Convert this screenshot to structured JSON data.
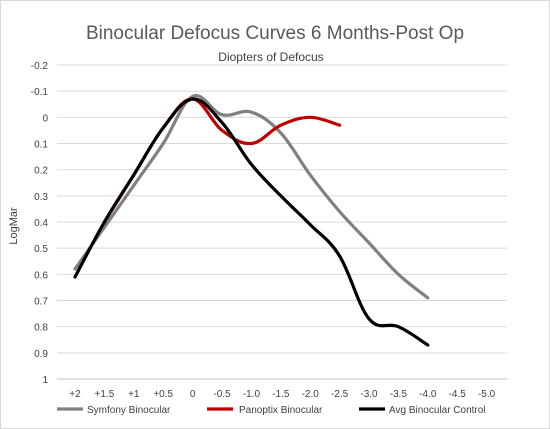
{
  "chart_data": {
    "type": "line",
    "title": "Binocular Defocus Curves 6 Months-Post Op",
    "subtitle": "Diopters of Defocus",
    "ylabel": "LogMar",
    "ylim": [
      -0.2,
      1.0
    ],
    "y_reversed": true,
    "yticks": [
      -0.2,
      -0.1,
      0,
      0.1,
      0.2,
      0.3,
      0.4,
      0.5,
      0.6,
      0.7,
      0.8,
      0.9,
      1
    ],
    "ytick_labels": [
      "-0.2",
      "-0.1",
      "0",
      "0.1",
      "0.2",
      "0.3",
      "0.4",
      "0.5",
      "0.6",
      "0.7",
      "0.8",
      "0.9",
      "1"
    ],
    "xticks": [
      2,
      1.5,
      1,
      0.5,
      0,
      -0.5,
      -1,
      -1.5,
      -2,
      -2.5,
      -3,
      -3.5,
      -4,
      -4.5,
      -5
    ],
    "xtick_labels": [
      "+2",
      "+1.5",
      "+1",
      "+0.5",
      "0",
      "-0.5",
      "-1.0",
      "-1.5",
      "-2.0",
      "-2.5",
      "-3.0",
      "-3.5",
      "-4.0",
      "-4.5",
      "-5.0"
    ],
    "grid": "horizontal",
    "legend_position": "bottom",
    "series": [
      {
        "name": "Symfony Binocular",
        "color": "#808080",
        "x": [
          2,
          1.5,
          1,
          0.5,
          0,
          -0.5,
          -1,
          -1.5,
          -2,
          -2.5,
          -3,
          -3.5,
          -4
        ],
        "y": [
          0.58,
          0.42,
          0.26,
          0.1,
          -0.08,
          -0.01,
          -0.02,
          0.06,
          0.22,
          0.36,
          0.48,
          0.6,
          0.69
        ]
      },
      {
        "name": "Panoptix Binocular",
        "color": "#c00000",
        "x": [
          1.5,
          1,
          0.5,
          0,
          -0.5,
          -1,
          -1.5,
          -2,
          -2.5
        ],
        "y": [
          0.4,
          0.22,
          0.04,
          -0.07,
          0.05,
          0.1,
          0.03,
          0.0,
          0.03
        ]
      },
      {
        "name": "Avg Binocular Control",
        "color": "#000000",
        "x": [
          2,
          1.5,
          1,
          0.5,
          0,
          -0.5,
          -1,
          -1.5,
          -2,
          -2.5,
          -3,
          -3.5,
          -4
        ],
        "y": [
          0.61,
          0.4,
          0.22,
          0.04,
          -0.07,
          0.02,
          0.18,
          0.3,
          0.41,
          0.53,
          0.77,
          0.8,
          0.87
        ]
      }
    ]
  }
}
